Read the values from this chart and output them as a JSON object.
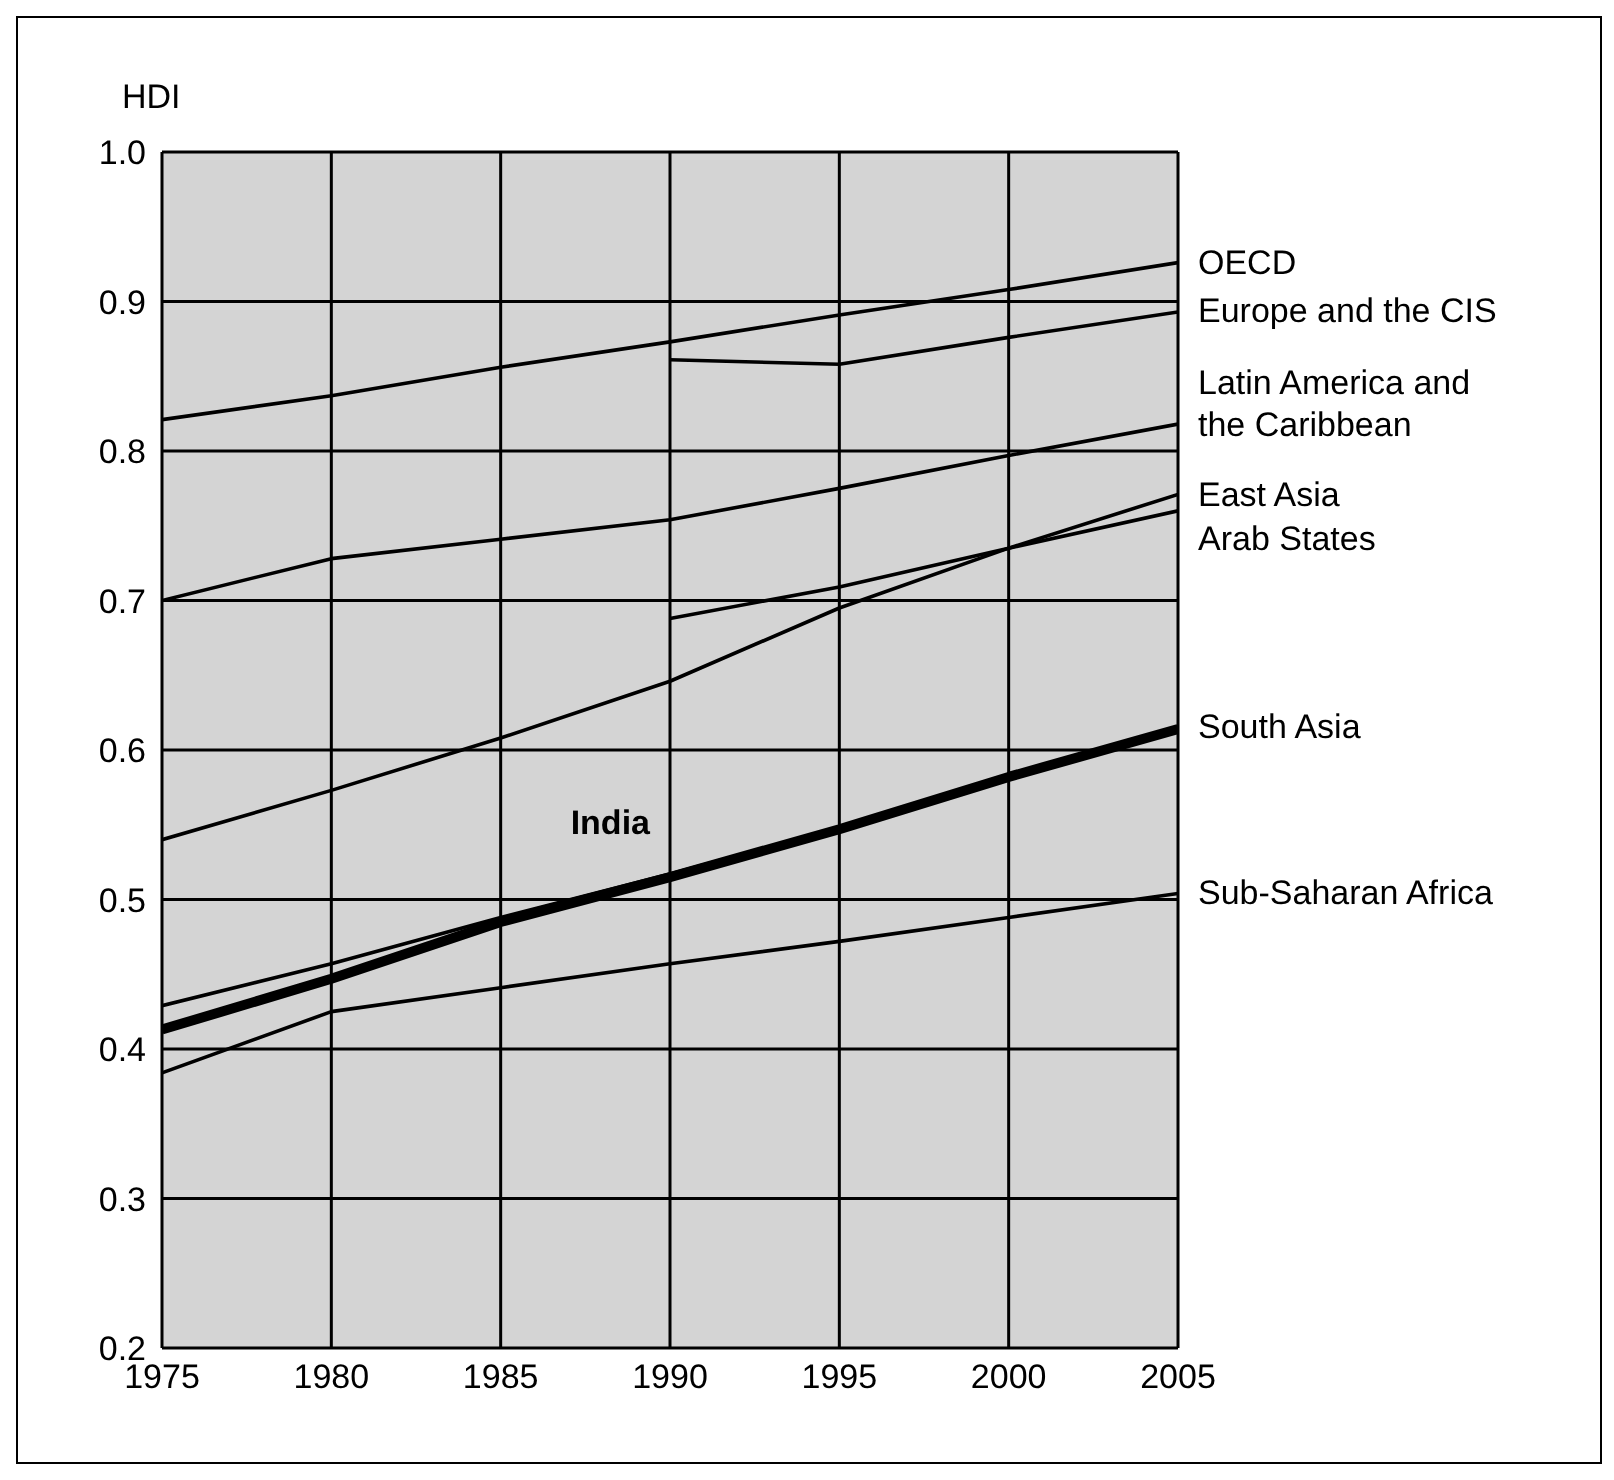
{
  "chart_data": {
    "type": "line",
    "ylabel": "HDI",
    "x": [
      1975,
      1980,
      1985,
      1990,
      1995,
      2000,
      2005
    ],
    "series": [
      {
        "name": "OECD",
        "color": "#000000",
        "values": [
          0.821,
          0.837,
          0.856,
          0.873,
          0.891,
          0.908,
          0.926
        ]
      },
      {
        "name": "Europe and the CIS",
        "color": "#000000",
        "values": [
          null,
          null,
          null,
          0.861,
          0.858,
          0.876,
          0.893
        ]
      },
      {
        "name": "Latin America and the Caribbean",
        "color": "#000000",
        "values": [
          0.7,
          0.728,
          0.741,
          0.754,
          0.775,
          0.797,
          0.818
        ]
      },
      {
        "name": "East Asia",
        "color": "#000000",
        "values": [
          0.54,
          0.573,
          0.608,
          0.646,
          0.695,
          0.735,
          0.771
        ]
      },
      {
        "name": "Arab States",
        "color": "#000000",
        "values": [
          null,
          null,
          null,
          0.688,
          0.709,
          0.735,
          0.76
        ]
      },
      {
        "name": "South Asia",
        "color": "#000000",
        "values": [
          0.429,
          0.457,
          0.488,
          0.517,
          0.548,
          0.583,
          0.615
        ]
      },
      {
        "color": "#000000",
        "values": [
          0.413,
          0.447,
          0.485,
          0.515,
          0.547,
          0.582,
          0.614
        ]
      },
      {
        "name": "Sub-Saharan Africa",
        "color": "#000000",
        "values": [
          0.384,
          0.425,
          0.441,
          0.457,
          0.472,
          0.488,
          0.504
        ]
      }
    ],
    "annotations": [
      {
        "text": "India",
        "x": 1990,
        "y": 0.515
      }
    ],
    "xlim": [
      1975,
      2005
    ],
    "xticks": [
      1975,
      1980,
      1985,
      1990,
      1995,
      2000,
      2005
    ],
    "ylim": [
      0.2,
      1.0
    ],
    "yticks": [
      0.2,
      0.3,
      0.4,
      0.5,
      0.6,
      0.7,
      0.8,
      0.9,
      {
        "value": 1.0,
        "label": "1.0"
      }
    ],
    "grid": true,
    "marker": "none",
    "line_style": "solid",
    "legend": false
  }
}
